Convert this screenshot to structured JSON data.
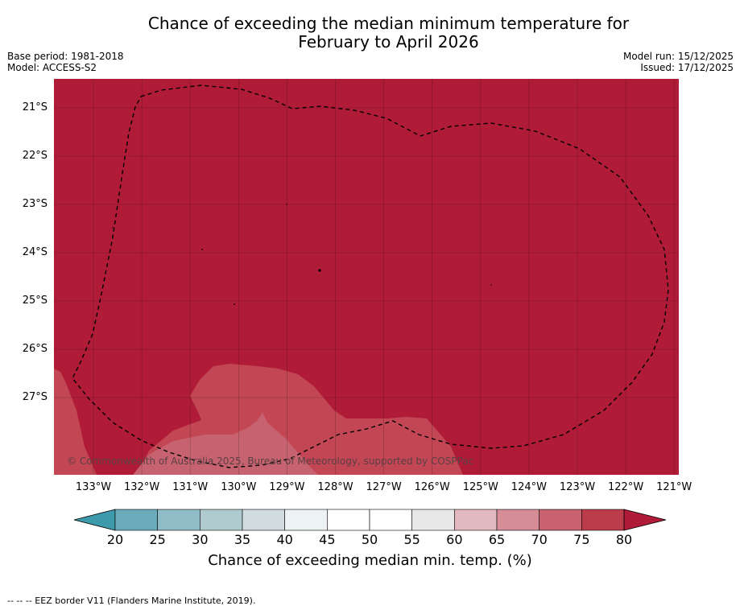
{
  "title_line1": "Chance of exceeding the median minimum temperature for",
  "title_line2": "February to April 2026",
  "base_period": "Base period: 1981-2018",
  "model": "Model: ACCESS-S2",
  "model_run": "Model run: 15/12/2025",
  "issued": "Issued: 17/12/2025",
  "copyright": "© Commonwealth of Australia 2025, Bureau of Meteorology, supported by COSPPac",
  "latitudes": [
    "21°S",
    "22°S",
    "23°S",
    "24°S",
    "25°S",
    "26°S",
    "27°S"
  ],
  "longitudes": [
    "133°W",
    "132°W",
    "131°W",
    "130°W",
    "129°W",
    "128°W",
    "127°W",
    "126°W",
    "125°W",
    "124°W",
    "123°W",
    "122°W",
    "121°W"
  ],
  "colorbar": {
    "ticks": [
      "20",
      "25",
      "30",
      "35",
      "40",
      "45",
      "50",
      "55",
      "60",
      "65",
      "70",
      "75",
      "80"
    ],
    "colors": [
      "#3c9aab",
      "#6aacbc",
      "#8fbcc6",
      "#b0cbd0",
      "#d0dce0",
      "#edf2f4",
      "#ffffff",
      "#ffffff",
      "#e8e8e8",
      "#e2b9c0",
      "#d58d97",
      "#c9626f",
      "#bd3c4c",
      "#b01c38"
    ],
    "label": "Chance of exceeding median min. temp. (%)"
  },
  "footer": "--  --  -- EEZ border V11 (Flanders Marine Institute, 2019)."
}
